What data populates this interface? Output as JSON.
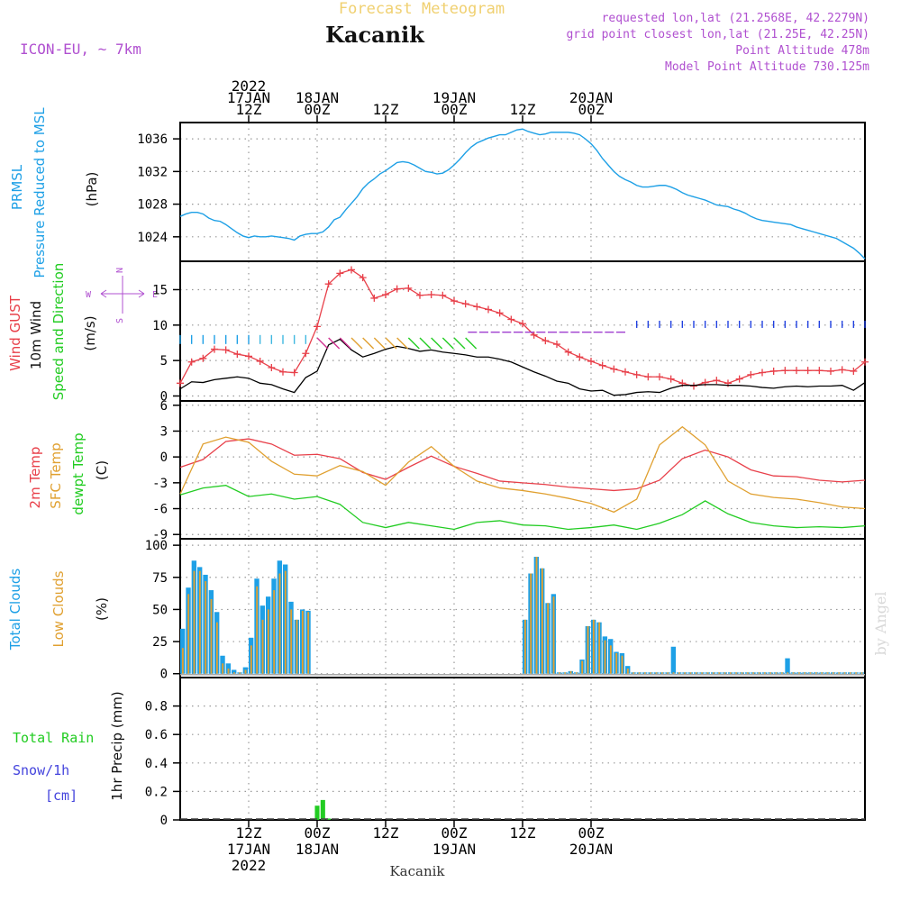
{
  "header": {
    "title": "Forecast Meteogram",
    "location": "Kacanik",
    "model": "ICON-EU, ~ 7km",
    "requested": "requested lon,lat (21.2568E, 42.2279N)",
    "gridpoint": "grid point closest lon,lat (21.25E, 42.25N)",
    "point_alt": "Point Altitude 478m",
    "model_alt": "Model Point Altitude 730.125m",
    "footer_location": "Kacanik",
    "watermark": "by Angel"
  },
  "colors": {
    "pressure": "#1ea0e6",
    "gust": "#e8404a",
    "wind": "#000000",
    "temp2m": "#e8404a",
    "sfctemp": "#e0a030",
    "dewpt": "#22cc22",
    "total_clouds": "#1ea0e6",
    "low_clouds": "#e0a030",
    "rain": "#22cc22",
    "snow": "#4444dd",
    "title": "#f0d070",
    "info": "#b050d0"
  },
  "time_axis": {
    "top_labels": [
      {
        "hour": 12,
        "lines": [
          "2022",
          "17JAN",
          "12Z"
        ]
      },
      {
        "hour": 24,
        "lines": [
          "18JAN",
          "00Z"
        ]
      },
      {
        "hour": 36,
        "lines": [
          "12Z"
        ]
      },
      {
        "hour": 48,
        "lines": [
          "19JAN",
          "00Z"
        ]
      },
      {
        "hour": 60,
        "lines": [
          "12Z"
        ]
      },
      {
        "hour": 72,
        "lines": [
          "20JAN",
          "00Z"
        ]
      }
    ],
    "bottom_labels": [
      {
        "hour": 12,
        "lines": [
          "12Z",
          "17JAN",
          "2022"
        ]
      },
      {
        "hour": 24,
        "lines": [
          "00Z",
          "18JAN"
        ]
      },
      {
        "hour": 36,
        "lines": [
          "12Z"
        ]
      },
      {
        "hour": 48,
        "lines": [
          "00Z",
          "19JAN"
        ]
      },
      {
        "hour": 60,
        "lines": [
          "12Z"
        ]
      },
      {
        "hour": 72,
        "lines": [
          "00Z",
          "20JAN"
        ]
      }
    ]
  },
  "chart_data": [
    {
      "type": "line",
      "name": "pressure",
      "labels": [
        "PRMSL",
        "Pressure Reduced to MSL",
        "(hPa)"
      ],
      "ylim": [
        1021,
        1038
      ],
      "yticks": [
        1024,
        1028,
        1032,
        1036
      ],
      "x": [
        0,
        1,
        2,
        3,
        4,
        5,
        6,
        7,
        8,
        9,
        10,
        11,
        12,
        13,
        14,
        15,
        16,
        17,
        18,
        19,
        20,
        21,
        22,
        23,
        24,
        25,
        26,
        27,
        28,
        29,
        30,
        31,
        32,
        33,
        34,
        35,
        36,
        37,
        38,
        39,
        40,
        41,
        42,
        43,
        44,
        45,
        46,
        47,
        48,
        49,
        50,
        51,
        52,
        53,
        54,
        55,
        56,
        57,
        58,
        59,
        60,
        61,
        62,
        63,
        64,
        65,
        66,
        67,
        68,
        69,
        70,
        71,
        72,
        73,
        74,
        75,
        76,
        77,
        78,
        79,
        80,
        81,
        82,
        83,
        84,
        85,
        86,
        87,
        88,
        89,
        90,
        91,
        92,
        93,
        94,
        95,
        96,
        97,
        98,
        99,
        100,
        101,
        102,
        103,
        104,
        105,
        106,
        107,
        108,
        109,
        110,
        111,
        112,
        113,
        114,
        115,
        116,
        117,
        118,
        119,
        120
      ],
      "series": [
        {
          "values": [
            1026.5,
            1026.8,
            1027.0,
            1027.0,
            1026.8,
            1026.3,
            1026.0,
            1025.9,
            1025.5,
            1025.0,
            1024.5,
            1024.1,
            1023.9,
            1024.1,
            1024.0,
            1024.0,
            1024.1,
            1024.0,
            1023.9,
            1023.8,
            1023.6,
            1024.1,
            1024.3,
            1024.4,
            1024.4,
            1024.6,
            1025.2,
            1026.1,
            1026.4,
            1027.3,
            1028.1,
            1028.9,
            1029.9,
            1030.6,
            1031.1,
            1031.7,
            1032.1,
            1032.6,
            1033.1,
            1033.2,
            1033.1,
            1032.8,
            1032.4,
            1032.0,
            1031.9,
            1031.7,
            1031.8,
            1032.2,
            1032.8,
            1033.5,
            1034.3,
            1035.0,
            1035.5,
            1035.8,
            1036.1,
            1036.3,
            1036.5,
            1036.5,
            1036.8,
            1037.1,
            1037.2,
            1036.9,
            1036.7,
            1036.5,
            1036.6,
            1036.8,
            1036.8,
            1036.8,
            1036.8,
            1036.7,
            1036.5,
            1036.0,
            1035.4,
            1034.6,
            1033.6,
            1032.8,
            1032.0,
            1031.4,
            1031.0,
            1030.7,
            1030.3,
            1030.1,
            1030.1,
            1030.2,
            1030.3,
            1030.3,
            1030.1,
            1029.8,
            1029.4,
            1029.1,
            1028.9,
            1028.7,
            1028.5,
            1028.2,
            1027.9,
            1027.8,
            1027.7,
            1027.4,
            1027.2,
            1026.9,
            1026.5,
            1026.2,
            1026.0,
            1025.9,
            1025.8,
            1025.7,
            1025.6,
            1025.5,
            1025.2,
            1025.0,
            1024.8,
            1024.6,
            1024.4,
            1024.2,
            1024.0,
            1023.8,
            1023.4,
            1023.0,
            1022.6,
            1022.0,
            1021.3
          ]
        }
      ]
    },
    {
      "type": "line",
      "name": "wind",
      "labels": [
        "Wind GUST",
        "10m Wind",
        "Speed and Direction",
        "(m/s)"
      ],
      "compass": [
        "N",
        "W",
        "E",
        "S"
      ],
      "ylim": [
        -0.7,
        19
      ],
      "yticks": [
        0,
        5,
        10,
        15
      ],
      "x": [
        0,
        2,
        4,
        6,
        8,
        10,
        12,
        14,
        16,
        18,
        20,
        22,
        24,
        26,
        28,
        30,
        32,
        34,
        36,
        38,
        40,
        42,
        44,
        46,
        48,
        50,
        52,
        54,
        56,
        58,
        60,
        62,
        64,
        66,
        68,
        70,
        72,
        74,
        76,
        78,
        80,
        82,
        84,
        86,
        88,
        90,
        92,
        94,
        96,
        98,
        100,
        102,
        104,
        106,
        108,
        110,
        112,
        114,
        116,
        118,
        120
      ],
      "series": [
        {
          "name": "Wind GUST",
          "values": [
            1.8,
            4.8,
            5.3,
            6.6,
            6.5,
            5.9,
            5.6,
            4.9,
            4.0,
            3.4,
            3.3,
            6.0,
            9.8,
            15.8,
            17.3,
            17.8,
            16.7,
            13.8,
            14.3,
            15.1,
            15.2,
            14.2,
            14.3,
            14.2,
            13.4,
            13.0,
            12.6,
            12.2,
            11.7,
            10.8,
            10.2,
            8.6,
            7.8,
            7.3,
            6.2,
            5.5,
            4.9,
            4.3,
            3.8,
            3.4,
            3.0,
            2.7,
            2.7,
            2.4,
            1.8,
            1.4,
            1.9,
            2.2,
            1.8,
            2.4,
            3.0,
            3.3,
            3.5,
            3.6,
            3.6,
            3.6,
            3.6,
            3.5,
            3.7,
            3.5,
            4.8
          ]
        },
        {
          "name": "10m Wind",
          "values": [
            1.0,
            2.0,
            1.9,
            2.3,
            2.5,
            2.7,
            2.5,
            1.8,
            1.6,
            1.0,
            0.5,
            2.6,
            3.5,
            7.2,
            8.0,
            6.5,
            5.5,
            6.0,
            6.6,
            7.0,
            6.7,
            6.3,
            6.5,
            6.2,
            6.0,
            5.8,
            5.5,
            5.5,
            5.2,
            4.8,
            4.1,
            3.4,
            2.8,
            2.1,
            1.8,
            1.0,
            0.7,
            0.8,
            0.1,
            0.2,
            0.5,
            0.6,
            0.5,
            1.1,
            1.5,
            1.5,
            1.6,
            1.6,
            1.5,
            1.5,
            1.4,
            1.2,
            1.1,
            1.3,
            1.4,
            1.3,
            1.4,
            1.4,
            1.5,
            0.8,
            1.9
          ]
        }
      ]
    },
    {
      "type": "line",
      "name": "temperature",
      "labels": [
        "2m Temp",
        "SFC Temp",
        "dewpt Temp",
        "(C)"
      ],
      "ylim": [
        -9.5,
        6.5
      ],
      "yticks": [
        -9,
        -6,
        -3,
        0,
        3,
        6
      ],
      "x": [
        0,
        4,
        8,
        12,
        16,
        20,
        24,
        28,
        32,
        36,
        40,
        44,
        48,
        52,
        56,
        60,
        64,
        68,
        72,
        76,
        80,
        84,
        88,
        92,
        96,
        100,
        104,
        108,
        112,
        116,
        120
      ],
      "series": [
        {
          "name": "2m Temp",
          "values": [
            -1.2,
            -0.3,
            1.8,
            2.1,
            1.5,
            0.2,
            0.3,
            -0.2,
            -1.8,
            -2.6,
            -1.2,
            0.1,
            -1.1,
            -1.9,
            -2.8,
            -3.0,
            -3.2,
            -3.5,
            -3.7,
            -3.9,
            -3.7,
            -2.7,
            -0.2,
            0.8,
            0.0,
            -1.5,
            -2.2,
            -2.3,
            -2.7,
            -2.9,
            -2.7
          ]
        },
        {
          "name": "SFC Temp",
          "values": [
            -4.3,
            1.5,
            2.3,
            1.7,
            -0.5,
            -2.0,
            -2.2,
            -1.0,
            -1.7,
            -3.3,
            -0.6,
            1.2,
            -1.1,
            -2.8,
            -3.6,
            -3.9,
            -4.3,
            -4.8,
            -5.4,
            -6.4,
            -4.9,
            1.4,
            3.5,
            1.4,
            -2.8,
            -4.3,
            -4.7,
            -4.9,
            -5.3,
            -5.8,
            -6.0
          ]
        },
        {
          "name": "dewpt Temp",
          "values": [
            -4.4,
            -3.6,
            -3.3,
            -4.6,
            -4.3,
            -4.9,
            -4.6,
            -5.5,
            -7.6,
            -8.2,
            -7.6,
            -8.0,
            -8.4,
            -7.6,
            -7.4,
            -7.9,
            -8.0,
            -8.4,
            -8.2,
            -7.9,
            -8.4,
            -7.7,
            -6.7,
            -5.1,
            -6.6,
            -7.6,
            -8.0,
            -8.2,
            -8.1,
            -8.2,
            -8.0
          ]
        }
      ]
    },
    {
      "type": "bar",
      "name": "clouds",
      "labels": [
        "Total Clouds",
        "Low Clouds",
        "(%)"
      ],
      "ylim": [
        -3,
        105
      ],
      "yticks": [
        0,
        25,
        50,
        75,
        100
      ],
      "x": [
        0,
        1,
        2,
        3,
        4,
        5,
        6,
        7,
        8,
        9,
        10,
        11,
        12,
        13,
        14,
        15,
        16,
        17,
        18,
        19,
        20,
        21,
        22,
        23,
        24,
        25,
        26,
        27,
        28,
        29,
        30,
        31,
        32,
        33,
        34,
        35,
        36,
        37,
        38,
        39,
        40,
        41,
        42,
        43,
        44,
        45,
        46,
        47,
        48,
        49,
        50,
        51,
        52,
        53,
        54,
        55,
        56,
        57,
        58,
        59,
        60,
        61,
        62,
        63,
        64,
        65,
        66,
        67,
        68,
        69,
        70,
        71,
        72,
        73,
        74,
        75,
        76,
        77,
        78,
        79,
        80,
        81,
        82,
        83,
        84,
        85,
        86,
        87,
        88,
        89,
        90,
        91,
        92,
        93,
        94,
        95,
        96,
        97,
        98,
        99,
        100,
        101,
        102,
        103,
        104,
        105,
        106,
        107,
        108,
        109,
        110,
        111,
        112,
        113,
        114,
        115,
        116,
        117,
        118,
        119
      ],
      "series": [
        {
          "name": "Total Clouds",
          "values": [
            35,
            67,
            88,
            83,
            77,
            65,
            48,
            14,
            8,
            3,
            1,
            5,
            28,
            74,
            53,
            60,
            74,
            88,
            85,
            56,
            42,
            50,
            49,
            0,
            0,
            0,
            0,
            0,
            0,
            0,
            0,
            0,
            0,
            0,
            0,
            0,
            0,
            0,
            0,
            0,
            0,
            0,
            0,
            0,
            0,
            0,
            0,
            0,
            0,
            0,
            0,
            0,
            0,
            0,
            0,
            0,
            0,
            0,
            0,
            0,
            42,
            78,
            91,
            82,
            55,
            62,
            1,
            1,
            2,
            1,
            11,
            37,
            42,
            40,
            29,
            27,
            17,
            16,
            6,
            1,
            1,
            1,
            1,
            1,
            1,
            1,
            21,
            1,
            1,
            1,
            1,
            1,
            1,
            1,
            1,
            1,
            1,
            1,
            1,
            1,
            1,
            1,
            1,
            1,
            1,
            1,
            12,
            1,
            1,
            1,
            1,
            1,
            1,
            1,
            1,
            1,
            1,
            1,
            1,
            1
          ]
        },
        {
          "name": "Low Clouds",
          "values": [
            20,
            62,
            80,
            80,
            72,
            58,
            40,
            8,
            4,
            1,
            1,
            3,
            22,
            68,
            42,
            50,
            65,
            78,
            80,
            50,
            42,
            49,
            48,
            0,
            0,
            0,
            0,
            0,
            0,
            0,
            0,
            0,
            0,
            0,
            0,
            0,
            0,
            0,
            0,
            0,
            0,
            0,
            0,
            0,
            0,
            0,
            0,
            0,
            0,
            0,
            0,
            0,
            0,
            0,
            0,
            0,
            0,
            0,
            0,
            0,
            42,
            78,
            91,
            82,
            55,
            60,
            1,
            1,
            2,
            1,
            10,
            37,
            42,
            40,
            26,
            22,
            16,
            14,
            4,
            1,
            1,
            1,
            1,
            1,
            1,
            1,
            1,
            1,
            1,
            1,
            1,
            1,
            1,
            1,
            1,
            1,
            1,
            1,
            1,
            1,
            1,
            1,
            1,
            1,
            1,
            1,
            1,
            1,
            1,
            1,
            1,
            1,
            1,
            1,
            1,
            1,
            1,
            1,
            1,
            1
          ]
        }
      ]
    },
    {
      "type": "bar",
      "name": "precipitation",
      "labels": [
        "Total Rain",
        "Snow/1h",
        "[cm]",
        "1hr Precip (mm)"
      ],
      "ylim": [
        0,
        1.0
      ],
      "yticks": [
        0,
        0.2,
        0.4,
        0.6,
        0.8
      ],
      "x": [
        24,
        25,
        26
      ],
      "series": [
        {
          "name": "Total Rain",
          "values": [
            0.1,
            0.14,
            0.01
          ]
        }
      ]
    }
  ]
}
